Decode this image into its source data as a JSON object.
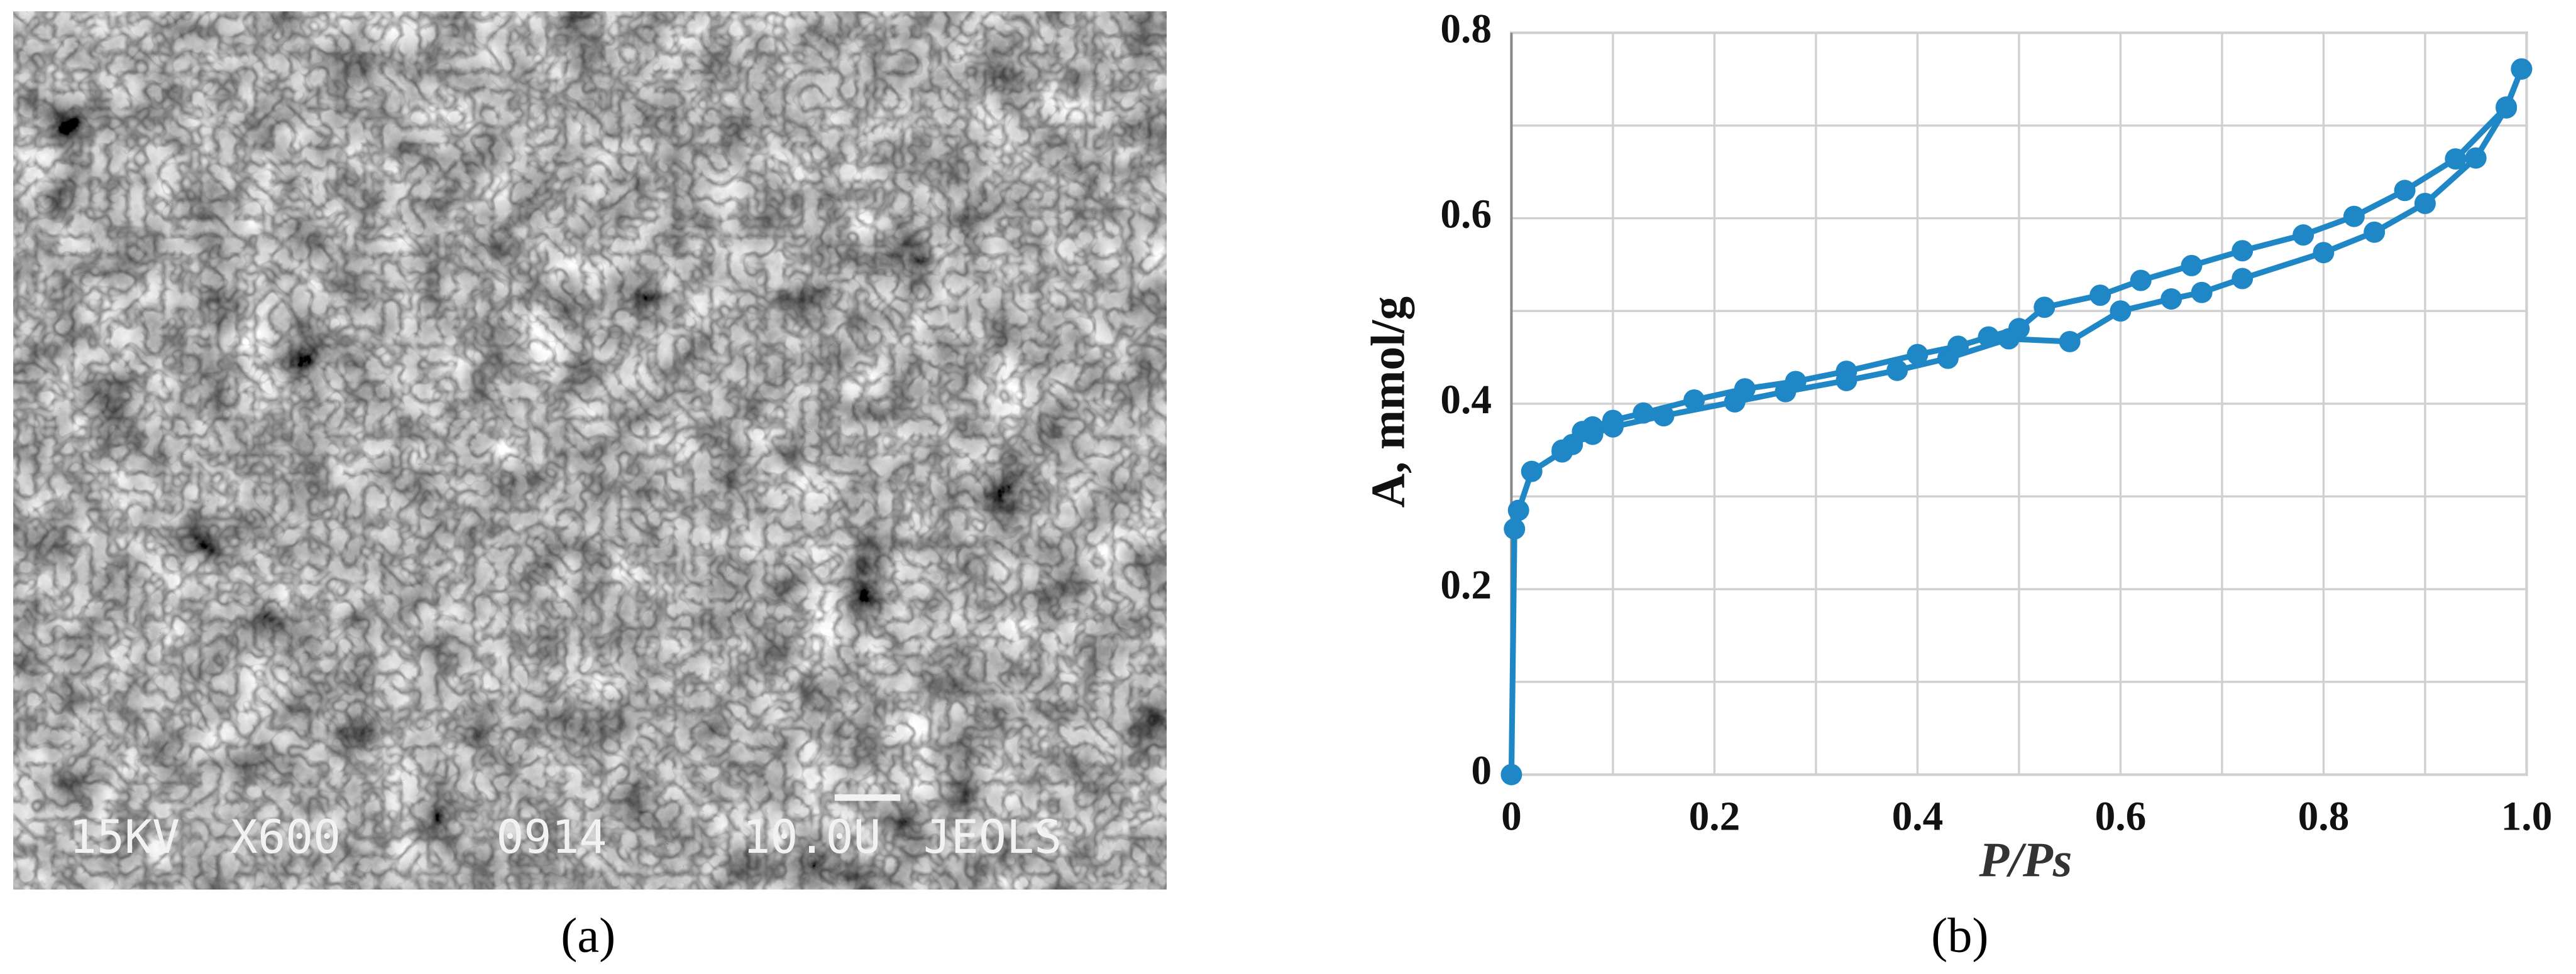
{
  "panel_labels": [
    "(a)",
    "(b)"
  ],
  "micrograph_text": [
    "15KV",
    "X600",
    "0914",
    "10.0U",
    "JEOLS"
  ],
  "chart_data": {
    "type": "line",
    "x_label": "P/Ps",
    "y_label": "A,  mmol/g",
    "xlim": [
      0,
      1
    ],
    "ylim": [
      0,
      0.8
    ],
    "xticks": [
      0,
      0.2,
      0.4,
      0.6,
      0.8,
      {
        "value": 1,
        "label": "1.0"
      }
    ],
    "yticks": [
      0,
      0.2,
      0.4,
      0.6,
      0.8
    ],
    "xminorticks": [
      0.1,
      0.3,
      0.5,
      0.7,
      0.9
    ],
    "yminorticks": [
      0.1,
      0.3,
      0.5,
      0.7
    ],
    "grid": true,
    "series": [
      {
        "color": "#1f87c6",
        "x": [
          0,
          0.003,
          0.007,
          0.02,
          0.05,
          0.06,
          0.08,
          0.1,
          0.15,
          0.22,
          0.27,
          0.33,
          0.38,
          0.43,
          0.49,
          0.55,
          0.6,
          0.65,
          0.68,
          0.72,
          0.8,
          0.85,
          0.9,
          0.95,
          0.98,
          0.995
        ],
        "values": [
          0,
          0.265,
          0.285,
          0.327,
          0.348,
          0.356,
          0.367,
          0.375,
          0.387,
          0.402,
          0.413,
          0.425,
          0.436,
          0.449,
          0.47,
          0.467,
          0.5,
          0.513,
          0.52,
          0.535,
          0.563,
          0.585,
          0.616,
          0.665,
          0.719,
          0.761
        ]
      },
      {
        "color": "#1f87c6",
        "x": [
          0.995,
          0.98,
          0.93,
          0.88,
          0.83,
          0.78,
          0.72,
          0.67,
          0.62,
          0.58,
          0.525,
          0.5,
          0.47,
          0.44,
          0.4,
          0.33,
          0.28,
          0.23,
          0.18,
          0.13,
          0.1,
          0.08,
          0.07,
          0.05
        ],
        "values": [
          0.761,
          0.72,
          0.664,
          0.63,
          0.602,
          0.582,
          0.565,
          0.549,
          0.533,
          0.517,
          0.504,
          0.481,
          0.472,
          0.462,
          0.453,
          0.435,
          0.424,
          0.416,
          0.404,
          0.39,
          0.382,
          0.375,
          0.37,
          0.35
        ]
      }
    ]
  }
}
